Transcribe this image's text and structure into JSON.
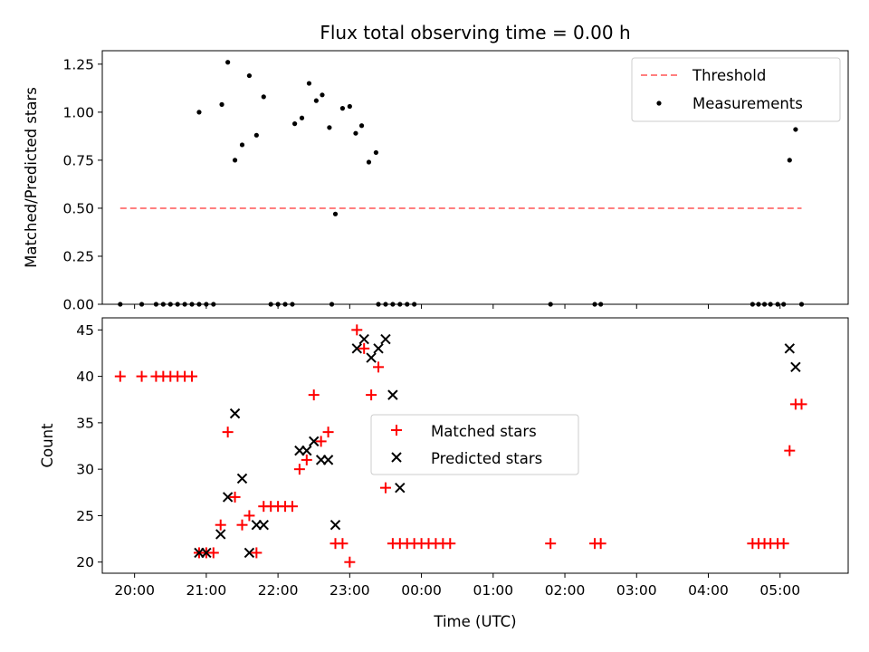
{
  "chart_data": [
    {
      "type": "scatter",
      "title": "Flux total observing time = 0.00 h",
      "ylabel": "Matched/Predicted stars",
      "xlabel": "",
      "xlim": [
        "19:33",
        "05:57"
      ],
      "ylim": [
        0,
        1.32
      ],
      "yticks": [
        "0.00",
        "0.25",
        "0.50",
        "0.75",
        "1.00",
        "1.25"
      ],
      "legend_position": "top-right",
      "threshold": {
        "name": "Threshold",
        "value": 0.5,
        "x": [
          "19:48",
          "05:18"
        ],
        "color": "#ff7f7f",
        "style": "dashed"
      },
      "series": [
        {
          "name": "Measurements",
          "color": "#000000",
          "marker": "dot",
          "points": [
            [
              "19:48",
              0
            ],
            [
              "20:06",
              0
            ],
            [
              "20:18",
              0
            ],
            [
              "20:24",
              0
            ],
            [
              "20:30",
              0
            ],
            [
              "20:36",
              0
            ],
            [
              "20:42",
              0
            ],
            [
              "20:48",
              0
            ],
            [
              "20:54",
              0
            ],
            [
              "21:00",
              0
            ],
            [
              "21:06",
              0
            ],
            [
              "20:54",
              1.0
            ],
            [
              "21:13",
              1.04
            ],
            [
              "21:18",
              1.26
            ],
            [
              "21:24",
              0.75
            ],
            [
              "21:30",
              0.83
            ],
            [
              "21:36",
              1.19
            ],
            [
              "21:42",
              0.88
            ],
            [
              "21:48",
              1.08
            ],
            [
              "21:54",
              0
            ],
            [
              "22:00",
              0
            ],
            [
              "22:06",
              0
            ],
            [
              "22:12",
              0
            ],
            [
              "22:14",
              0.94
            ],
            [
              "22:20",
              0.97
            ],
            [
              "22:26",
              1.15
            ],
            [
              "22:32",
              1.06
            ],
            [
              "22:37",
              1.09
            ],
            [
              "22:43",
              0.92
            ],
            [
              "22:45",
              0
            ],
            [
              "22:48",
              0.47
            ],
            [
              "22:54",
              1.02
            ],
            [
              "23:00",
              1.03
            ],
            [
              "23:05",
              0.89
            ],
            [
              "23:10",
              0.93
            ],
            [
              "23:16",
              0.74
            ],
            [
              "23:22",
              0.79
            ],
            [
              "23:24",
              0
            ],
            [
              "23:30",
              0
            ],
            [
              "23:36",
              0
            ],
            [
              "23:42",
              0
            ],
            [
              "23:48",
              0
            ],
            [
              "23:54",
              0
            ],
            [
              "01:48",
              0
            ],
            [
              "02:25",
              0
            ],
            [
              "02:30",
              0
            ],
            [
              "04:37",
              0
            ],
            [
              "04:42",
              0
            ],
            [
              "04:47",
              0
            ],
            [
              "04:52",
              0
            ],
            [
              "04:58",
              0
            ],
            [
              "05:03",
              0
            ],
            [
              "05:08",
              0.75
            ],
            [
              "05:13",
              0.91
            ],
            [
              "05:18",
              0
            ]
          ]
        }
      ]
    },
    {
      "type": "scatter",
      "title": "",
      "ylabel": "Count",
      "xlabel": "Time (UTC)",
      "xlim": [
        "19:33",
        "05:57"
      ],
      "ylim": [
        18.8,
        46.3
      ],
      "yticks": [
        "20",
        "25",
        "30",
        "35",
        "40",
        "45"
      ],
      "xticks": [
        "20:00",
        "21:00",
        "22:00",
        "23:00",
        "00:00",
        "01:00",
        "02:00",
        "03:00",
        "04:00",
        "05:00"
      ],
      "legend_position": "center",
      "series": [
        {
          "name": "Matched stars",
          "color": "#ff0000",
          "marker": "plus",
          "points": [
            [
              "19:48",
              40
            ],
            [
              "20:06",
              40
            ],
            [
              "20:18",
              40
            ],
            [
              "20:24",
              40
            ],
            [
              "20:30",
              40
            ],
            [
              "20:36",
              40
            ],
            [
              "20:42",
              40
            ],
            [
              "20:48",
              40
            ],
            [
              "20:54",
              21
            ],
            [
              "21:00",
              21
            ],
            [
              "21:06",
              21
            ],
            [
              "21:12",
              24
            ],
            [
              "21:18",
              34
            ],
            [
              "21:24",
              27
            ],
            [
              "21:30",
              24
            ],
            [
              "21:36",
              25
            ],
            [
              "21:42",
              21
            ],
            [
              "21:48",
              26
            ],
            [
              "21:54",
              26
            ],
            [
              "22:00",
              26
            ],
            [
              "22:06",
              26
            ],
            [
              "22:12",
              26
            ],
            [
              "22:18",
              30
            ],
            [
              "22:24",
              31
            ],
            [
              "22:30",
              38
            ],
            [
              "22:36",
              33
            ],
            [
              "22:42",
              34
            ],
            [
              "22:48",
              22
            ],
            [
              "22:54",
              22
            ],
            [
              "23:00",
              20
            ],
            [
              "23:06",
              45
            ],
            [
              "23:12",
              43
            ],
            [
              "23:18",
              38
            ],
            [
              "23:24",
              41
            ],
            [
              "23:30",
              28
            ],
            [
              "23:36",
              22
            ],
            [
              "23:42",
              22
            ],
            [
              "23:48",
              22
            ],
            [
              "23:54",
              22
            ],
            [
              "00:00",
              22
            ],
            [
              "00:06",
              22
            ],
            [
              "00:12",
              22
            ],
            [
              "00:18",
              22
            ],
            [
              "00:24",
              22
            ],
            [
              "01:48",
              22
            ],
            [
              "02:25",
              22
            ],
            [
              "02:30",
              22
            ],
            [
              "04:37",
              22
            ],
            [
              "04:42",
              22
            ],
            [
              "04:47",
              22
            ],
            [
              "04:52",
              22
            ],
            [
              "04:58",
              22
            ],
            [
              "05:03",
              22
            ],
            [
              "05:08",
              32
            ],
            [
              "05:13",
              37
            ],
            [
              "05:18",
              37
            ]
          ]
        },
        {
          "name": "Predicted stars",
          "color": "#000000",
          "marker": "x",
          "points": [
            [
              "20:54",
              21
            ],
            [
              "21:00",
              21
            ],
            [
              "21:12",
              23
            ],
            [
              "21:18",
              27
            ],
            [
              "21:24",
              36
            ],
            [
              "21:30",
              29
            ],
            [
              "21:36",
              21
            ],
            [
              "21:42",
              24
            ],
            [
              "21:48",
              24
            ],
            [
              "22:18",
              32
            ],
            [
              "22:24",
              32
            ],
            [
              "22:30",
              33
            ],
            [
              "22:36",
              31
            ],
            [
              "22:42",
              31
            ],
            [
              "22:48",
              24
            ],
            [
              "23:06",
              43
            ],
            [
              "23:12",
              44
            ],
            [
              "23:18",
              42
            ],
            [
              "23:24",
              43
            ],
            [
              "23:30",
              44
            ],
            [
              "23:36",
              38
            ],
            [
              "23:42",
              28
            ],
            [
              "05:08",
              43
            ],
            [
              "05:13",
              41
            ]
          ]
        }
      ]
    }
  ]
}
